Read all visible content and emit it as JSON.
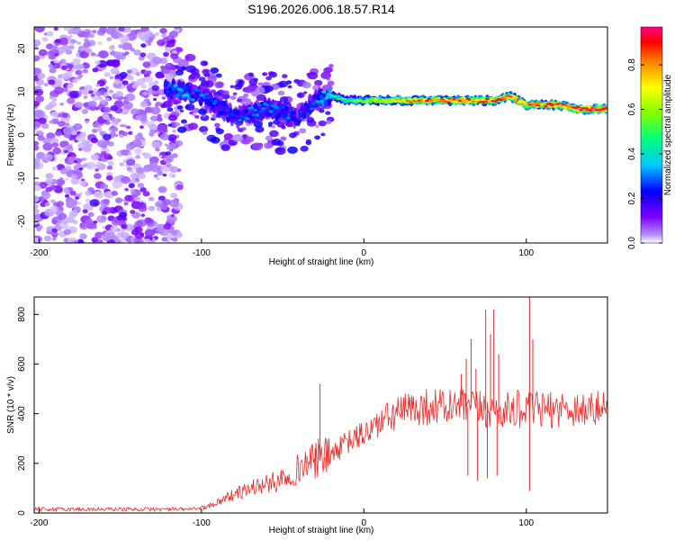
{
  "title": "S196.2026.006.18.57.R14",
  "colors": {
    "line": "#ef2929",
    "blob_outline": "#7f00ff",
    "background": "#ffffff"
  },
  "colorbar": {
    "label": "Normalized spectral amplitude",
    "ticks": [
      "0.0",
      "0.2",
      "0.4",
      "0.6",
      "0.8"
    ],
    "tick_values": [
      0.0,
      0.2,
      0.4,
      0.6,
      0.8
    ],
    "range": [
      0.0,
      0.97
    ]
  },
  "chart_data": [
    {
      "type": "heatmap",
      "name": "spectrogram",
      "xlabel": "Height of straight line (km)",
      "ylabel": "Frequency (Hz)",
      "xlim": [
        -203,
        150
      ],
      "ylim": [
        -25,
        25
      ],
      "xticks": [
        -200,
        -100,
        0,
        100
      ],
      "xtick_labels": [
        "-200",
        "-100",
        "0",
        "100"
      ],
      "yticks": [
        -20,
        -10,
        0,
        10,
        20
      ],
      "ytick_labels": [
        "-20",
        "-10",
        "0",
        "10",
        "20"
      ],
      "ridge": [
        {
          "x": -120,
          "y": 11,
          "amp": 0.3
        },
        {
          "x": -110,
          "y": 10,
          "amp": 0.35
        },
        {
          "x": -100,
          "y": 9,
          "amp": 0.3
        },
        {
          "x": -90,
          "y": 7,
          "amp": 0.28
        },
        {
          "x": -80,
          "y": 4,
          "amp": 0.28
        },
        {
          "x": -70,
          "y": 5,
          "amp": 0.3
        },
        {
          "x": -60,
          "y": 6,
          "amp": 0.32
        },
        {
          "x": -50,
          "y": 5,
          "amp": 0.3
        },
        {
          "x": -40,
          "y": 4,
          "amp": 0.28
        },
        {
          "x": -30,
          "y": 8,
          "amp": 0.3
        },
        {
          "x": -20,
          "y": 9,
          "amp": 0.45
        },
        {
          "x": -10,
          "y": 8,
          "amp": 0.5
        },
        {
          "x": 0,
          "y": 8,
          "amp": 0.6
        },
        {
          "x": 10,
          "y": 8,
          "amp": 0.65
        },
        {
          "x": 20,
          "y": 8,
          "amp": 0.75
        },
        {
          "x": 30,
          "y": 8,
          "amp": 0.8
        },
        {
          "x": 40,
          "y": 8,
          "amp": 0.85
        },
        {
          "x": 50,
          "y": 8,
          "amp": 0.85
        },
        {
          "x": 60,
          "y": 8,
          "amp": 0.9
        },
        {
          "x": 70,
          "y": 8,
          "amp": 0.85
        },
        {
          "x": 80,
          "y": 8,
          "amp": 0.9
        },
        {
          "x": 90,
          "y": 9,
          "amp": 0.85
        },
        {
          "x": 100,
          "y": 7,
          "amp": 0.8
        },
        {
          "x": 110,
          "y": 7,
          "amp": 0.85
        },
        {
          "x": 120,
          "y": 7,
          "amp": 0.9
        },
        {
          "x": 130,
          "y": 6,
          "amp": 0.95
        },
        {
          "x": 140,
          "y": 6,
          "amp": 0.97
        },
        {
          "x": 150,
          "y": 6,
          "amp": 0.97
        }
      ]
    },
    {
      "type": "line",
      "name": "snr",
      "xlabel": "Height of straight line (km)",
      "ylabel": "SNR (10 * v/v)",
      "xlim": [
        -203,
        150
      ],
      "ylim": [
        0,
        870
      ],
      "xticks": [
        -200,
        -100,
        0,
        100
      ],
      "xtick_labels": [
        "-200",
        "-100",
        "0",
        "100"
      ],
      "yticks": [
        0,
        200,
        400,
        600,
        800
      ],
      "ytick_labels": [
        "0",
        "200",
        "400",
        "600",
        "800"
      ],
      "series": [
        {
          "name": "SNR",
          "x": [
            -203,
            -190,
            -180,
            -170,
            -160,
            -150,
            -140,
            -130,
            -120,
            -110,
            -100,
            -95,
            -90,
            -85,
            -80,
            -75,
            -70,
            -65,
            -60,
            -55,
            -50,
            -45,
            -40,
            -35,
            -30,
            -25,
            -20,
            -15,
            -10,
            -5,
            0,
            5,
            10,
            15,
            20,
            25,
            30,
            35,
            40,
            45,
            50,
            55,
            60,
            65,
            70,
            75,
            80,
            85,
            90,
            95,
            100,
            105,
            110,
            115,
            120,
            125,
            130,
            135,
            140,
            145,
            150
          ],
          "y": [
            15,
            15,
            15,
            15,
            15,
            15,
            15,
            15,
            15,
            15,
            20,
            30,
            45,
            60,
            75,
            85,
            100,
            110,
            115,
            125,
            145,
            160,
            180,
            200,
            210,
            220,
            240,
            260,
            285,
            300,
            320,
            340,
            365,
            380,
            400,
            410,
            420,
            425,
            430,
            430,
            425,
            425,
            430,
            425,
            420,
            415,
            410,
            410,
            415,
            420,
            410,
            415,
            415,
            415,
            420,
            420,
            420,
            420,
            415,
            420,
            420
          ]
        }
      ],
      "spikes": [
        {
          "x": -35,
          "y": 230
        },
        {
          "x": -30,
          "y": 260
        },
        {
          "x": -28,
          "y": 300
        },
        {
          "x": -27,
          "y": 520
        },
        {
          "x": -24,
          "y": 180
        },
        {
          "x": 60,
          "y": 560
        },
        {
          "x": 63,
          "y": 620
        },
        {
          "x": 66,
          "y": 700
        },
        {
          "x": 69,
          "y": 580
        },
        {
          "x": 75,
          "y": 820
        },
        {
          "x": 78,
          "y": 720
        },
        {
          "x": 80,
          "y": 820
        },
        {
          "x": 83,
          "y": 640
        },
        {
          "x": 102,
          "y": 870
        },
        {
          "x": 104,
          "y": 700
        }
      ],
      "dips": [
        {
          "x": 64,
          "y": 150
        },
        {
          "x": 70,
          "y": 130
        },
        {
          "x": 76,
          "y": 140
        },
        {
          "x": 82,
          "y": 150
        },
        {
          "x": 102,
          "y": 90
        }
      ]
    }
  ]
}
